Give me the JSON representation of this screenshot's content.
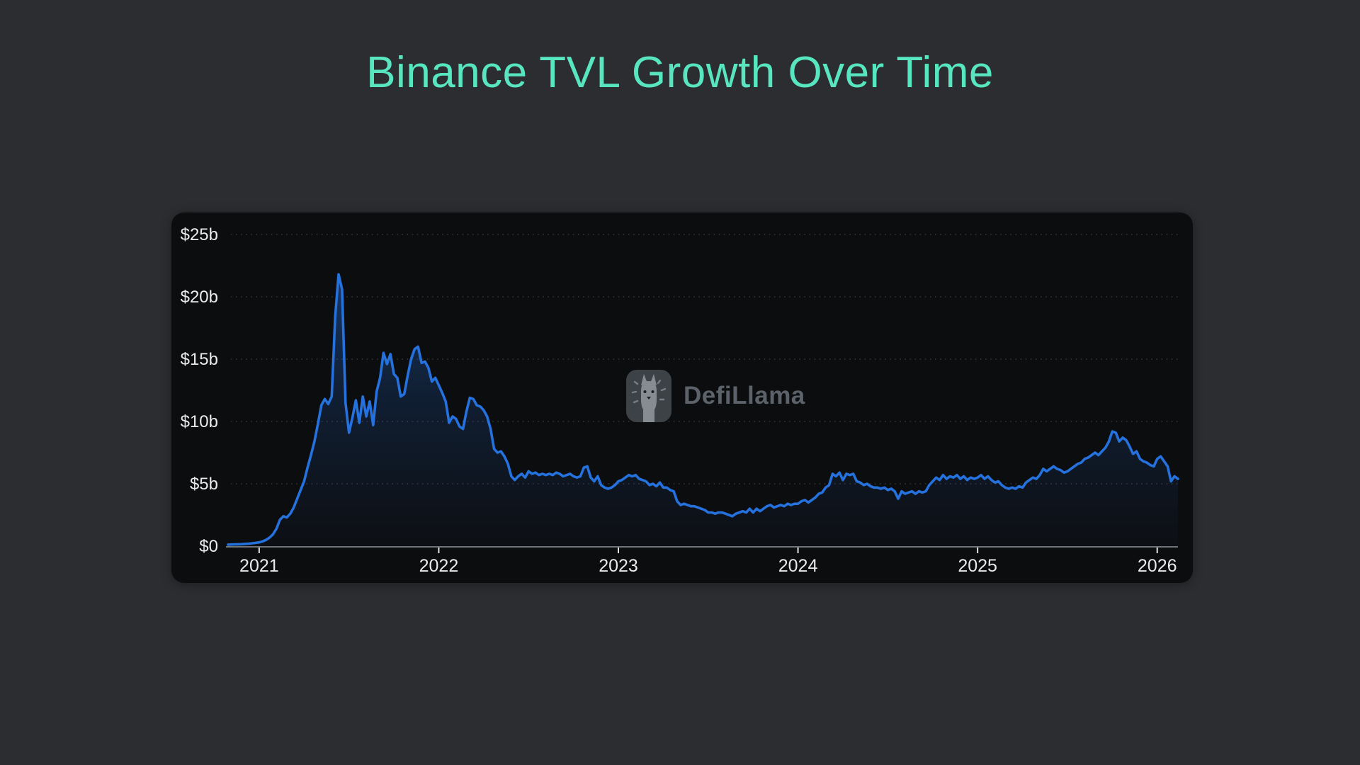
{
  "title": "Binance TVL Growth Over Time",
  "watermark": {
    "label": "DefiLlama"
  },
  "colors": {
    "page_bg": "#2b2d30",
    "card_bg": "#0c0d0f",
    "title": "#58e6c0",
    "tick_label": "#e9eaeb",
    "axis": "#70757a",
    "tick_mark": "#e0e2e4",
    "line": "#2571dd",
    "grid": "#ffffff",
    "watermark_text": "#5c6269"
  },
  "chart_data": {
    "type": "area",
    "title": "Binance TVL Growth Over Time",
    "xlabel": "",
    "ylabel": "",
    "unit": "USD billions (TVL)",
    "grid": "dotted-horizontal",
    "legend": "none",
    "ylim": [
      0,
      25
    ],
    "xlim": [
      2020.827,
      2026.115
    ],
    "x_start": 2020.827,
    "x_step": 0.019231,
    "y_ticks": [
      {
        "value": 0,
        "label": "$0"
      },
      {
        "value": 5,
        "label": "$5b"
      },
      {
        "value": 10,
        "label": "$10b"
      },
      {
        "value": 15,
        "label": "$15b"
      },
      {
        "value": 20,
        "label": "$20b"
      },
      {
        "value": 25,
        "label": "$25b"
      }
    ],
    "x_ticks": [
      {
        "value": 2021,
        "label": "2021"
      },
      {
        "value": 2022,
        "label": "2022"
      },
      {
        "value": 2023,
        "label": "2023"
      },
      {
        "value": 2024,
        "label": "2024"
      },
      {
        "value": 2025,
        "label": "2025"
      },
      {
        "value": 2026,
        "label": "2026"
      }
    ],
    "series": [
      {
        "name": "Binance TVL",
        "values": [
          0.12,
          0.13,
          0.14,
          0.15,
          0.16,
          0.18,
          0.2,
          0.23,
          0.26,
          0.3,
          0.38,
          0.5,
          0.68,
          0.95,
          1.4,
          2.1,
          2.4,
          2.3,
          2.6,
          3.1,
          3.8,
          4.5,
          5.2,
          6.3,
          7.3,
          8.4,
          9.8,
          11.3,
          11.8,
          11.4,
          12.0,
          18.4,
          21.8,
          20.6,
          11.5,
          9.1,
          10.3,
          11.7,
          9.9,
          12.0,
          10.4,
          11.6,
          9.7,
          12.4,
          13.5,
          15.5,
          14.6,
          15.4,
          13.8,
          13.5,
          12.0,
          12.2,
          13.7,
          15.0,
          15.8,
          16.0,
          14.7,
          14.8,
          14.3,
          13.2,
          13.5,
          12.9,
          12.3,
          11.6,
          9.9,
          10.4,
          10.2,
          9.6,
          9.4,
          10.8,
          11.9,
          11.8,
          11.3,
          11.2,
          10.9,
          10.4,
          9.4,
          7.8,
          7.5,
          7.6,
          7.2,
          6.6,
          5.6,
          5.3,
          5.6,
          5.8,
          5.5,
          6.0,
          5.8,
          5.9,
          5.7,
          5.8,
          5.7,
          5.8,
          5.7,
          5.9,
          5.8,
          5.6,
          5.7,
          5.8,
          5.6,
          5.5,
          5.6,
          6.3,
          6.4,
          5.5,
          5.2,
          5.6,
          4.9,
          4.7,
          4.6,
          4.7,
          4.9,
          5.2,
          5.3,
          5.5,
          5.7,
          5.6,
          5.7,
          5.4,
          5.3,
          5.2,
          4.9,
          5.0,
          4.8,
          5.1,
          4.7,
          4.7,
          4.5,
          4.4,
          3.6,
          3.3,
          3.4,
          3.3,
          3.2,
          3.2,
          3.1,
          3.0,
          2.9,
          2.7,
          2.7,
          2.6,
          2.7,
          2.7,
          2.6,
          2.5,
          2.4,
          2.6,
          2.7,
          2.8,
          2.7,
          3.0,
          2.7,
          3.0,
          2.8,
          3.0,
          3.2,
          3.3,
          3.1,
          3.2,
          3.3,
          3.2,
          3.4,
          3.3,
          3.4,
          3.4,
          3.6,
          3.7,
          3.5,
          3.7,
          3.9,
          4.2,
          4.3,
          4.7,
          4.9,
          5.8,
          5.6,
          5.9,
          5.3,
          5.8,
          5.7,
          5.8,
          5.2,
          5.1,
          4.9,
          5.0,
          4.8,
          4.7,
          4.7,
          4.6,
          4.7,
          4.5,
          4.6,
          4.4,
          3.8,
          4.4,
          4.2,
          4.3,
          4.4,
          4.2,
          4.4,
          4.3,
          4.4,
          4.9,
          5.2,
          5.5,
          5.3,
          5.7,
          5.4,
          5.6,
          5.5,
          5.7,
          5.4,
          5.6,
          5.3,
          5.5,
          5.4,
          5.5,
          5.7,
          5.4,
          5.6,
          5.3,
          5.1,
          5.2,
          4.9,
          4.7,
          4.6,
          4.7,
          4.6,
          4.8,
          4.7,
          5.1,
          5.3,
          5.5,
          5.4,
          5.7,
          6.2,
          6.0,
          6.2,
          6.4,
          6.2,
          6.1,
          5.9,
          6.0,
          6.2,
          6.4,
          6.6,
          6.7,
          7.0,
          7.1,
          7.3,
          7.5,
          7.3,
          7.6,
          7.9,
          8.4,
          9.2,
          9.1,
          8.4,
          8.7,
          8.5,
          8.0,
          7.4,
          7.6,
          7.0,
          6.8,
          6.7,
          6.5,
          6.4,
          7.0,
          7.2,
          6.8,
          6.4,
          5.2,
          5.6,
          5.4
        ]
      }
    ]
  }
}
